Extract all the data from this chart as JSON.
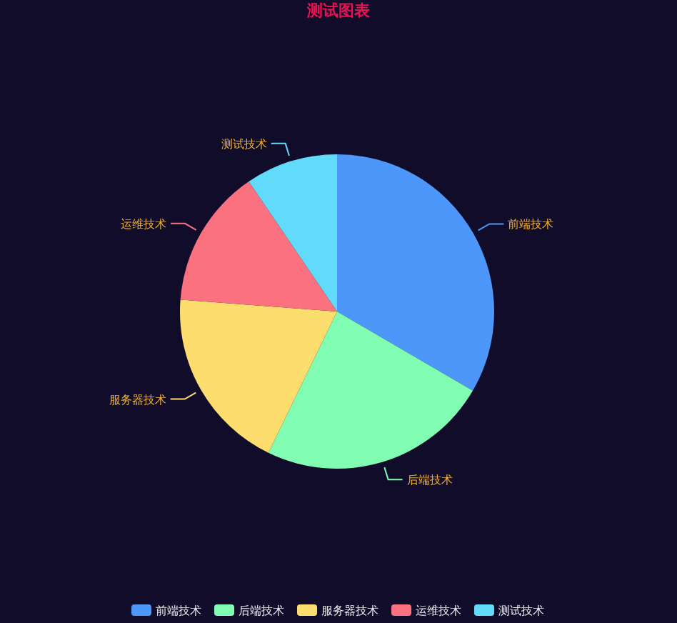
{
  "chart_data": {
    "type": "pie",
    "title": "测试图表",
    "categories": [
      "前端技术",
      "后端技术",
      "服务器技术",
      "运维技术",
      "测试技术"
    ],
    "values": [
      33.4,
      23.8,
      19.0,
      14.3,
      9.5
    ],
    "colors": [
      "#4e97fa",
      "#80fdb2",
      "#fddd6e",
      "#fb7180",
      "#62dbfb"
    ],
    "legend": "bottom"
  }
}
